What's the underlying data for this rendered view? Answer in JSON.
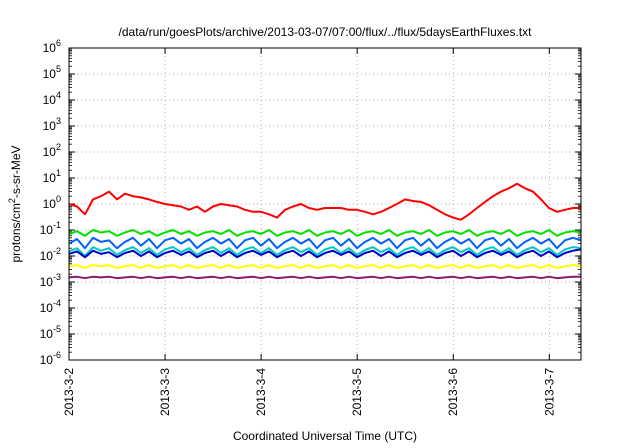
{
  "chart_data": {
    "type": "line",
    "title": "/data/run/goesPlots/archive/2013-03-07/07:00/flux/../flux/5daysEarthFluxes.txt",
    "xlabel": "Coordinated Universal Time (UTC)",
    "ylabel": {
      "base": "protons/cm",
      "sup": "2",
      "rest": "-s-sr-MeV"
    },
    "yscale": "log",
    "ylim_exp": [
      -6,
      6
    ],
    "ytick_labels": [
      {
        "exp": 6,
        "base": "10",
        "sup": "6"
      },
      {
        "exp": 5,
        "base": "10",
        "sup": "5"
      },
      {
        "exp": 4,
        "base": "10",
        "sup": "4"
      },
      {
        "exp": 3,
        "base": "10",
        "sup": "3"
      },
      {
        "exp": 2,
        "base": "10",
        "sup": "2"
      },
      {
        "exp": 1,
        "base": "10",
        "sup": "1"
      },
      {
        "exp": 0,
        "base": "10",
        "sup": "0"
      },
      {
        "exp": -1,
        "base": "10",
        "sup": "-1"
      },
      {
        "exp": -2,
        "base": "10",
        "sup": "-2"
      },
      {
        "exp": -3,
        "base": "10",
        "sup": "-3"
      },
      {
        "exp": -4,
        "base": "10",
        "sup": "-4"
      },
      {
        "exp": -5,
        "base": "10",
        "sup": "-5"
      },
      {
        "exp": -6,
        "base": "10",
        "sup": "-6"
      }
    ],
    "xlim_days": [
      0,
      5.33
    ],
    "xticks": [
      {
        "day": 0,
        "label": "2013-3-2"
      },
      {
        "day": 1,
        "label": "2013-3-3"
      },
      {
        "day": 2,
        "label": "2013-3-4"
      },
      {
        "day": 3,
        "label": "2013-3-5"
      },
      {
        "day": 4,
        "label": "2013-3-6"
      },
      {
        "day": 5,
        "label": "2013-3-7"
      }
    ],
    "grid": true,
    "legend": "none",
    "series": [
      {
        "color": "#ff0000",
        "values": [
          1.0,
          0.8,
          0.4,
          1.5,
          2.0,
          3.0,
          1.5,
          2.5,
          2.0,
          1.8,
          1.5,
          1.2,
          1.0,
          0.9,
          0.8,
          0.6,
          0.8,
          0.5,
          0.8,
          1.0,
          0.9,
          0.8,
          0.6,
          0.5,
          0.5,
          0.4,
          0.3,
          0.6,
          0.8,
          1.0,
          0.7,
          0.6,
          0.7,
          0.7,
          0.7,
          0.6,
          0.6,
          0.5,
          0.4,
          0.5,
          0.7,
          1.0,
          1.5,
          1.3,
          1.2,
          0.9,
          0.6,
          0.4,
          0.3,
          0.25,
          0.4,
          0.7,
          1.2,
          2.0,
          3.0,
          4.0,
          6.0,
          4.0,
          3.0,
          1.5,
          0.7,
          0.5,
          0.6,
          0.7,
          0.7
        ]
      },
      {
        "color": "#00e000",
        "values": [
          0.07,
          0.09,
          0.06,
          0.1,
          0.08,
          0.09,
          0.06,
          0.08,
          0.1,
          0.07,
          0.09,
          0.06,
          0.08,
          0.1,
          0.07,
          0.09,
          0.06,
          0.08,
          0.09,
          0.07,
          0.1,
          0.06,
          0.08,
          0.09,
          0.07,
          0.1,
          0.06,
          0.08,
          0.09,
          0.07,
          0.1,
          0.06,
          0.08,
          0.09,
          0.07,
          0.1,
          0.06,
          0.08,
          0.09,
          0.07,
          0.1,
          0.06,
          0.08,
          0.09,
          0.07,
          0.1,
          0.06,
          0.08,
          0.09,
          0.07,
          0.1,
          0.06,
          0.08,
          0.09,
          0.07,
          0.1,
          0.06,
          0.08,
          0.09,
          0.07,
          0.1,
          0.06,
          0.08,
          0.09,
          0.08
        ]
      },
      {
        "color": "#0060ff",
        "values": [
          0.03,
          0.045,
          0.02,
          0.05,
          0.035,
          0.04,
          0.02,
          0.035,
          0.05,
          0.025,
          0.045,
          0.02,
          0.04,
          0.05,
          0.03,
          0.045,
          0.02,
          0.035,
          0.05,
          0.03,
          0.045,
          0.02,
          0.04,
          0.05,
          0.025,
          0.045,
          0.02,
          0.035,
          0.05,
          0.03,
          0.045,
          0.02,
          0.04,
          0.05,
          0.025,
          0.045,
          0.02,
          0.035,
          0.05,
          0.03,
          0.045,
          0.02,
          0.04,
          0.05,
          0.025,
          0.045,
          0.02,
          0.035,
          0.05,
          0.03,
          0.045,
          0.02,
          0.04,
          0.05,
          0.025,
          0.045,
          0.02,
          0.035,
          0.05,
          0.03,
          0.045,
          0.02,
          0.04,
          0.05,
          0.04
        ]
      },
      {
        "color": "#00c8c8",
        "values": [
          0.015,
          0.02,
          0.01,
          0.022,
          0.016,
          0.02,
          0.011,
          0.017,
          0.022,
          0.013,
          0.02,
          0.011,
          0.018,
          0.022,
          0.014,
          0.02,
          0.011,
          0.017,
          0.022,
          0.013,
          0.02,
          0.011,
          0.018,
          0.022,
          0.013,
          0.02,
          0.011,
          0.017,
          0.022,
          0.014,
          0.02,
          0.011,
          0.018,
          0.022,
          0.013,
          0.02,
          0.011,
          0.017,
          0.022,
          0.014,
          0.02,
          0.011,
          0.018,
          0.022,
          0.013,
          0.02,
          0.011,
          0.017,
          0.022,
          0.014,
          0.02,
          0.011,
          0.018,
          0.022,
          0.013,
          0.02,
          0.011,
          0.017,
          0.022,
          0.014,
          0.02,
          0.011,
          0.018,
          0.022,
          0.02
        ]
      },
      {
        "color": "#0000c8",
        "values": [
          0.012,
          0.015,
          0.009,
          0.016,
          0.012,
          0.014,
          0.009,
          0.013,
          0.016,
          0.01,
          0.015,
          0.009,
          0.013,
          0.016,
          0.011,
          0.015,
          0.009,
          0.013,
          0.016,
          0.01,
          0.015,
          0.009,
          0.013,
          0.016,
          0.011,
          0.015,
          0.009,
          0.013,
          0.016,
          0.01,
          0.015,
          0.009,
          0.013,
          0.016,
          0.011,
          0.015,
          0.009,
          0.013,
          0.016,
          0.01,
          0.015,
          0.009,
          0.013,
          0.016,
          0.011,
          0.015,
          0.009,
          0.013,
          0.016,
          0.01,
          0.015,
          0.009,
          0.013,
          0.016,
          0.011,
          0.015,
          0.009,
          0.013,
          0.016,
          0.01,
          0.015,
          0.009,
          0.013,
          0.016,
          0.018
        ]
      },
      {
        "color": "#ffff00",
        "values": [
          0.004,
          0.0045,
          0.0035,
          0.0045,
          0.004,
          0.0045,
          0.0035,
          0.004,
          0.0045,
          0.0035,
          0.0045,
          0.0035,
          0.004,
          0.0045,
          0.0035,
          0.0045,
          0.0035,
          0.004,
          0.0045,
          0.0035,
          0.0045,
          0.0035,
          0.004,
          0.0045,
          0.0035,
          0.0045,
          0.0035,
          0.004,
          0.0045,
          0.0035,
          0.0045,
          0.0035,
          0.004,
          0.0045,
          0.0035,
          0.0045,
          0.0035,
          0.004,
          0.0045,
          0.0035,
          0.0045,
          0.0035,
          0.004,
          0.0045,
          0.0035,
          0.0045,
          0.0035,
          0.004,
          0.0045,
          0.0035,
          0.0045,
          0.0035,
          0.004,
          0.0045,
          0.0035,
          0.0045,
          0.0035,
          0.004,
          0.0045,
          0.0035,
          0.0045,
          0.0035,
          0.004,
          0.0045,
          0.004
        ]
      },
      {
        "color": "#8b1a6b",
        "values": [
          0.0015,
          0.0016,
          0.0014,
          0.0016,
          0.0015,
          0.0016,
          0.0014,
          0.0015,
          0.0016,
          0.0014,
          0.0016,
          0.0014,
          0.0015,
          0.0016,
          0.0014,
          0.0016,
          0.0014,
          0.0015,
          0.0016,
          0.0014,
          0.0016,
          0.0014,
          0.0015,
          0.0016,
          0.0014,
          0.0016,
          0.0014,
          0.0015,
          0.0016,
          0.0014,
          0.0016,
          0.0014,
          0.0015,
          0.0016,
          0.0014,
          0.0016,
          0.0014,
          0.0015,
          0.0016,
          0.0014,
          0.0016,
          0.0014,
          0.0015,
          0.0016,
          0.0014,
          0.0016,
          0.0014,
          0.0015,
          0.0016,
          0.0014,
          0.0016,
          0.0014,
          0.0015,
          0.0016,
          0.0014,
          0.0016,
          0.0014,
          0.0015,
          0.0016,
          0.0014,
          0.0016,
          0.0014,
          0.0015,
          0.0016,
          0.0016
        ]
      }
    ]
  }
}
